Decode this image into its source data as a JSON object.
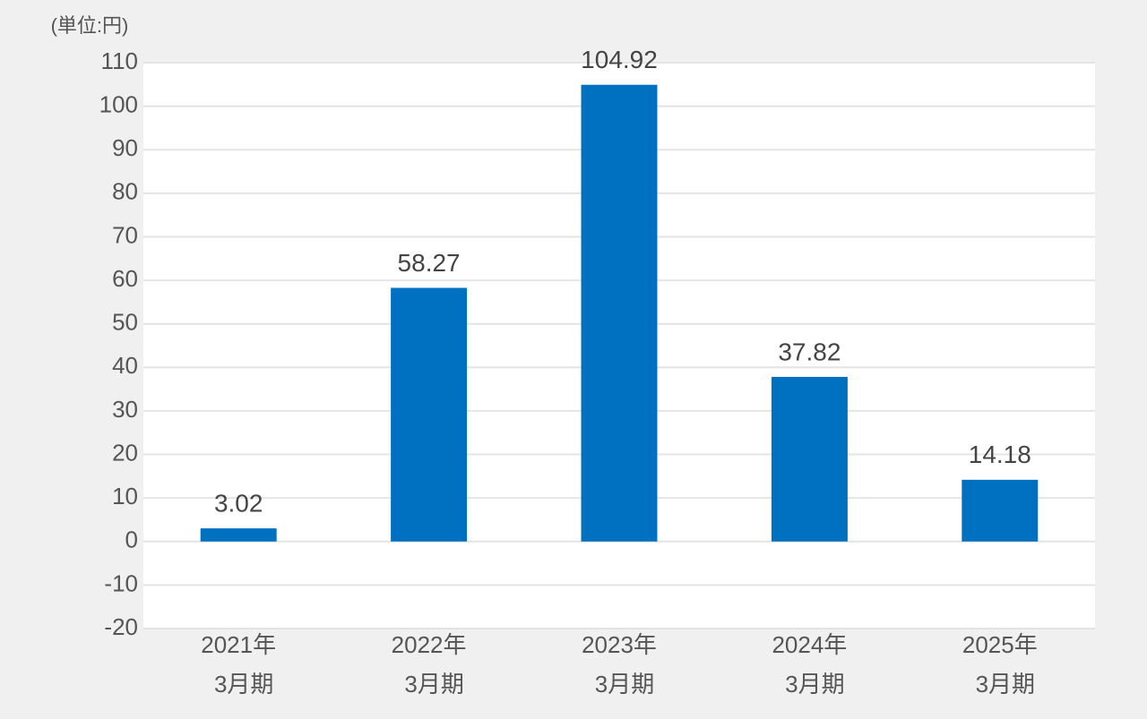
{
  "chart_data": {
    "type": "bar",
    "y_label": "(単位:円)",
    "categories": [
      "2021年\n3月期",
      "2022年\n3月期",
      "2023年\n3月期",
      "2024年\n3月期",
      "2025年\n3月期"
    ],
    "values": [
      3.02,
      58.27,
      104.92,
      37.82,
      14.18
    ],
    "color": "#0070c0",
    "ylim": [
      -20,
      110
    ],
    "yticks": [
      -20,
      -10,
      0,
      10,
      20,
      30,
      40,
      50,
      60,
      70,
      80,
      90,
      100,
      110
    ],
    "grid": true
  }
}
